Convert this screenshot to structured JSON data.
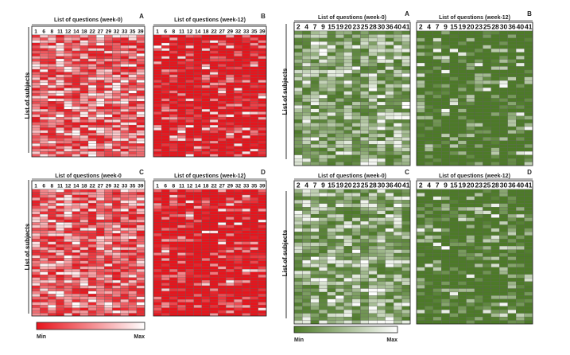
{
  "figure": {
    "ylabel": "List of subjects",
    "colorbar_left": {
      "min": "Min",
      "max": "Max",
      "colors": [
        "#e8141c",
        "#ffffff"
      ]
    },
    "colorbar_right": {
      "min": "Min",
      "max": "Max",
      "colors": [
        "#4d7a28",
        "#ffffff"
      ]
    }
  },
  "chart_data": [
    {
      "type": "heatmap",
      "letter": "A",
      "title": "List of questions (week-0)",
      "ylabel": "List of subjects",
      "xticks": [
        "1",
        "6",
        "8",
        "11",
        "12",
        "14",
        "18",
        "22",
        "27",
        "29",
        "32",
        "33",
        "35",
        "39"
      ],
      "colors": {
        "base": "#e8141c",
        "light": "#ffffff"
      },
      "rows": 46,
      "intensity": "mixed"
    },
    {
      "type": "heatmap",
      "letter": "B",
      "title": "List of questions (week-12)",
      "ylabel": "",
      "xticks": [
        "1",
        "6",
        "8",
        "11",
        "12",
        "14",
        "18",
        "22",
        "27",
        "29",
        "32",
        "33",
        "35",
        "39"
      ],
      "colors": {
        "base": "#e8141c",
        "light": "#ffffff"
      },
      "rows": 46,
      "intensity": "mostly high"
    },
    {
      "type": "heatmap",
      "letter": "C",
      "title": "List of questions (week-0",
      "ylabel": "List of subjects",
      "xticks": [
        "1",
        "6",
        "8",
        "11",
        "12",
        "14",
        "18",
        "22",
        "27",
        "29",
        "32",
        "33",
        "35",
        "39"
      ],
      "colors": {
        "base": "#e8141c",
        "light": "#ffffff"
      },
      "rows": 46,
      "intensity": "mixed"
    },
    {
      "type": "heatmap",
      "letter": "D",
      "title": "List of questions (week-12)",
      "ylabel": "",
      "xticks": [
        "1",
        "6",
        "8",
        "11",
        "12",
        "14",
        "18",
        "22",
        "27",
        "29",
        "32",
        "33",
        "35",
        "39"
      ],
      "colors": {
        "base": "#e8141c",
        "light": "#ffffff"
      },
      "rows": 46,
      "intensity": "mostly high"
    },
    {
      "type": "heatmap",
      "letter": "A",
      "title": "List of questions (week-0)",
      "ylabel": "List of subjects",
      "xticks": [
        "2",
        "4",
        "7",
        "9",
        "15",
        "19",
        "20",
        "23",
        "25",
        "28",
        "30",
        "36",
        "40",
        "41"
      ],
      "colors": {
        "base": "#4d7a28",
        "light": "#ffffff"
      },
      "rows": 38,
      "intensity": "mixed"
    },
    {
      "type": "heatmap",
      "letter": "B",
      "title": "List of questions (week-12)",
      "ylabel": "",
      "xticks": [
        "2",
        "4",
        "7",
        "9",
        "15",
        "19",
        "20",
        "23",
        "25",
        "28",
        "30",
        "36",
        "40",
        "41"
      ],
      "colors": {
        "base": "#4d7a28",
        "light": "#ffffff"
      },
      "rows": 38,
      "intensity": "mostly high"
    },
    {
      "type": "heatmap",
      "letter": "C",
      "title": "List of questions (week-0)",
      "ylabel": "List of subjects",
      "xticks": [
        "2",
        "4",
        "7",
        "9",
        "15",
        "19",
        "20",
        "23",
        "25",
        "28",
        "30",
        "36",
        "40",
        "41"
      ],
      "colors": {
        "base": "#4d7a28",
        "light": "#ffffff"
      },
      "rows": 38,
      "intensity": "mixed"
    },
    {
      "type": "heatmap",
      "letter": "D",
      "title": "List of questions (week-12)",
      "ylabel": "",
      "xticks": [
        "2",
        "4",
        "7",
        "9",
        "15",
        "19",
        "20",
        "23",
        "25",
        "28",
        "30",
        "36",
        "40",
        "41"
      ],
      "colors": {
        "base": "#4d7a28",
        "light": "#ffffff"
      },
      "rows": 38,
      "intensity": "mostly high"
    }
  ]
}
